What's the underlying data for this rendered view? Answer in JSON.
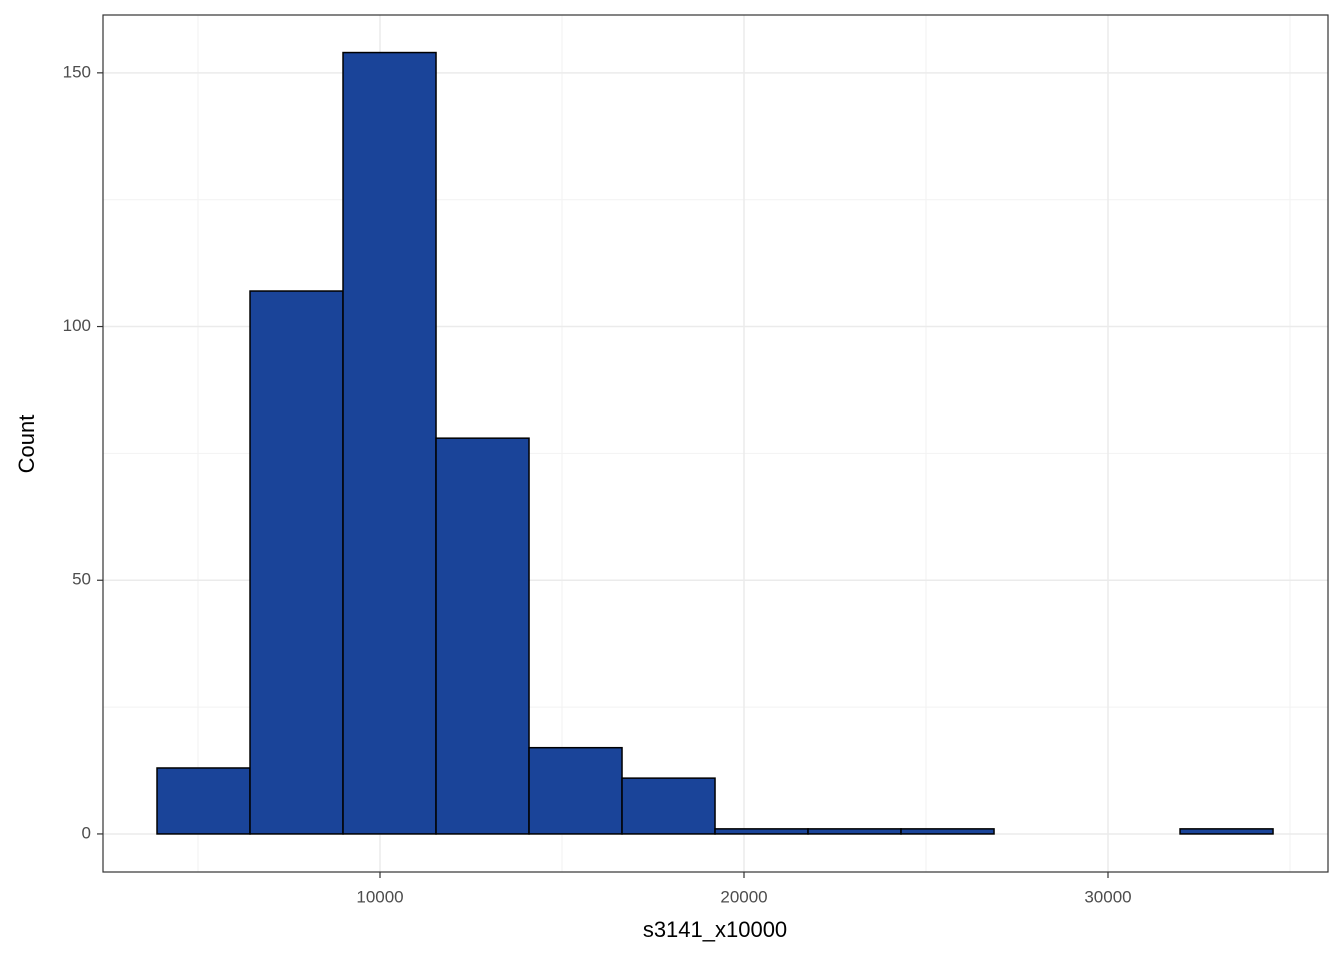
{
  "chart_data": {
    "type": "histogram",
    "xlabel": "s3141_x10000",
    "ylabel": "Count",
    "bins": [
      3874,
      6429,
      8984,
      11539,
      14094,
      16649,
      19204,
      21759,
      24314,
      26869,
      29424,
      31979,
      34534
    ],
    "counts": [
      13,
      107,
      154,
      78,
      17,
      11,
      1,
      1,
      1,
      0,
      0,
      1
    ],
    "color": "#1a4499",
    "edgecolor": "#000000",
    "xlim": [
      2390,
      36044
    ],
    "ylim": [
      -7.5,
      161.4
    ],
    "xticks": [
      10000,
      20000,
      30000
    ],
    "yticks": [
      0,
      50,
      100,
      150
    ],
    "xminor": [
      5000,
      15000,
      25000,
      35000
    ],
    "yminor": [
      25,
      75,
      125
    ],
    "grid": true
  }
}
